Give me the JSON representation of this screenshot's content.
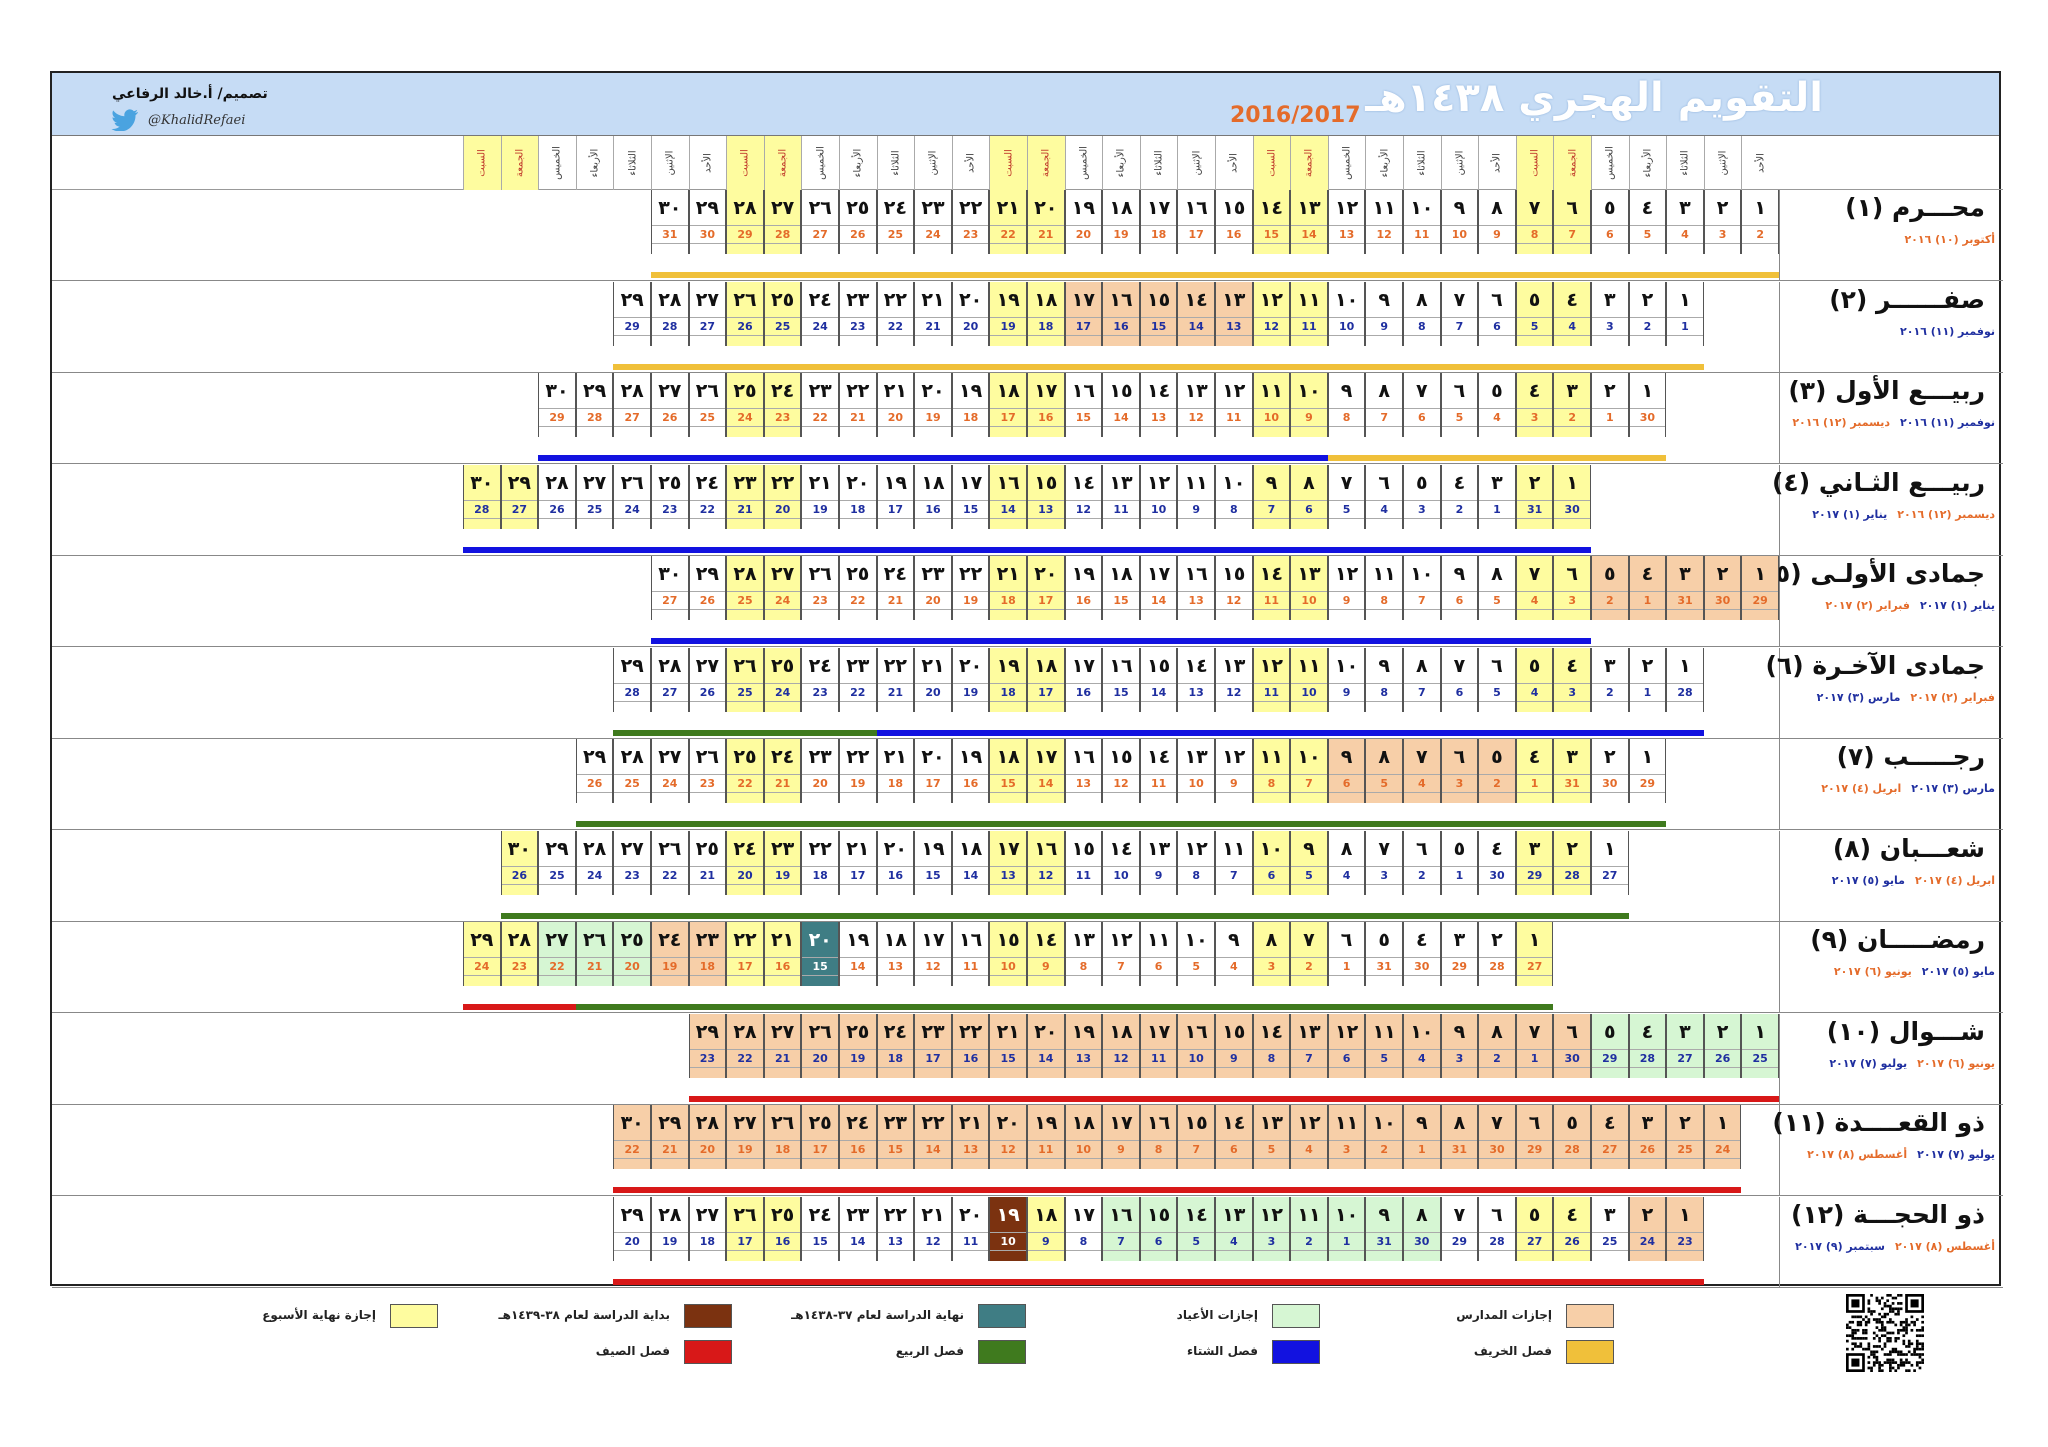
{
  "title": "التقويم الهجري ١٤٣٨هـ",
  "years": "2016/2017",
  "designer": "تصميم/ أ.خالد الرفاعي",
  "handle": "@KhalidRefaei",
  "colors": {
    "weekend": "#fefc9f",
    "school_holiday": "#f7cfa8",
    "eid_holiday": "#d6f6d3",
    "end_of_study": "#3f7d84",
    "start_of_study": "#7b3210",
    "autumn": "#f0c03a",
    "winter": "#1212e0",
    "spring": "#3f7a1e",
    "summer": "#d81818",
    "banner": "#c6dcf5",
    "title_orange": "#e46b2a"
  },
  "weekday_cycle": [
    "الأحد",
    "الإثنين",
    "الثلاثاء",
    "الأربعاء",
    "الخميس",
    "الجمعة",
    "السبت"
  ],
  "months": [
    {
      "name": "محـــرم (١)",
      "greg": [
        {
          "t": "أكتوبر (١٠) ٢٠١٦",
          "c": "a"
        }
      ],
      "offset": 0,
      "len": 30,
      "gstart": 2,
      "gmax": 31,
      "bars": [
        {
          "from": 1,
          "to": 30,
          "season": "autumn"
        }
      ]
    },
    {
      "name": "صفــــــر (٢)",
      "greg": [
        {
          "t": "نوفمبر (١١) ٢٠١٦",
          "c": "b"
        }
      ],
      "offset": 2,
      "len": 29,
      "gstart": 1,
      "gmax": 30,
      "holidays": {
        "sv": [
          13,
          14,
          15,
          16,
          17
        ]
      },
      "bars": [
        {
          "from": 1,
          "to": 29,
          "season": "autumn"
        }
      ]
    },
    {
      "name": "ربيـــع الأول (٣)",
      "greg": [
        {
          "t": "نوفمبر (١١) ٢٠١٦",
          "c": "b"
        },
        {
          "t": "ديسمبر (١٢) ٢٠١٦",
          "c": "a"
        }
      ],
      "offset": 3,
      "len": 30,
      "gstart": 30,
      "gmax": 30,
      "bars": [
        {
          "from": 1,
          "to": 9,
          "season": "autumn"
        },
        {
          "from": 10,
          "to": 30,
          "season": "winter"
        }
      ]
    },
    {
      "name": "ربيـــع الثـاني (٤)",
      "greg": [
        {
          "t": "ديسمبر (١٢) ٢٠١٦",
          "c": "a"
        },
        {
          "t": "يناير (١) ٢٠١٧",
          "c": "b"
        }
      ],
      "offset": 5,
      "len": 30,
      "gstart": 30,
      "gmax": 31,
      "bars": [
        {
          "from": 1,
          "to": 30,
          "season": "winter"
        },
        {
          "from": 31,
          "to": 35,
          "season": "winter"
        }
      ]
    },
    {
      "name": "جمادى الأولـى (٥)",
      "greg": [
        {
          "t": "يناير (١) ٢٠١٧",
          "c": "b"
        },
        {
          "t": "فبراير (٢) ٢٠١٧",
          "c": "a"
        }
      ],
      "offset": 0,
      "len": 30,
      "gstart": 29,
      "gmax": 31,
      "holidays": {
        "sv": [
          1,
          2,
          3,
          4,
          5
        ]
      },
      "bars": [
        {
          "from": 6,
          "to": 30,
          "season": "winter"
        }
      ]
    },
    {
      "name": "جمادى الآخـرة (٦)",
      "greg": [
        {
          "t": "فبراير (٢) ٢٠١٧",
          "c": "a"
        },
        {
          "t": "مارس (٣) ٢٠١٧",
          "c": "b"
        }
      ],
      "offset": 2,
      "len": 29,
      "gstart": 28,
      "gmax": 28,
      "bars": [
        {
          "from": 1,
          "to": 22,
          "season": "winter"
        },
        {
          "from": 23,
          "to": 29,
          "season": "spring"
        }
      ]
    },
    {
      "name": "رجـــــب (٧)",
      "greg": [
        {
          "t": "مارس (٣) ٢٠١٧",
          "c": "b"
        },
        {
          "t": "ابريل (٤) ٢٠١٧",
          "c": "a"
        }
      ],
      "offset": 3,
      "len": 29,
      "gstart": 29,
      "gmax": 31,
      "holidays": {
        "sv": [
          5,
          6,
          7,
          8,
          9
        ]
      },
      "bars": [
        {
          "from": 1,
          "to": 29,
          "season": "spring"
        }
      ]
    },
    {
      "name": "شعـــبان (٨)",
      "greg": [
        {
          "t": "ابريل (٤) ٢٠١٧",
          "c": "a"
        },
        {
          "t": "مايو (٥) ٢٠١٧",
          "c": "b"
        }
      ],
      "offset": 4,
      "len": 30,
      "gstart": 27,
      "gmax": 30,
      "bars": [
        {
          "from": 1,
          "to": 30,
          "season": "spring"
        }
      ]
    },
    {
      "name": "رمضـــــان (٩)",
      "greg": [
        {
          "t": "مايو (٥) ٢٠١٧",
          "c": "b"
        },
        {
          "t": "يونيو (٦) ٢٠١٧",
          "c": "a"
        }
      ],
      "offset": 6,
      "len": 29,
      "gstart": 27,
      "gmax": 31,
      "holidays": {
        "sv": [
          23,
          24
        ],
        "hv": [
          25,
          26,
          27
        ],
        "end": [
          20
        ]
      },
      "bars": [
        {
          "from": 1,
          "to": 26,
          "season": "spring"
        },
        {
          "from": 27,
          "to": 29,
          "season": "summer"
        }
      ]
    },
    {
      "name": "شـــوال (١٠)",
      "greg": [
        {
          "t": "يونيو (٦) ٢٠١٧",
          "c": "a"
        },
        {
          "t": "يوليو (٧) ٢٠١٧",
          "c": "b"
        }
      ],
      "offset": 0,
      "len": 29,
      "gstart": 25,
      "gmax": 30,
      "holidays": {
        "hv": [
          1,
          2,
          3,
          4,
          5
        ],
        "sv": [
          6,
          7,
          8,
          9,
          10,
          11,
          12,
          13,
          14,
          15,
          16,
          17,
          18,
          19,
          20,
          21,
          22,
          23,
          24,
          25,
          26,
          27,
          28,
          29
        ]
      },
      "bars": [
        {
          "from": 1,
          "to": 29,
          "season": "summer"
        }
      ]
    },
    {
      "name": "ذو القعــــدة (١١)",
      "greg": [
        {
          "t": "يوليو (٧) ٢٠١٧",
          "c": "b"
        },
        {
          "t": "أغسطس (٨) ٢٠١٧",
          "c": "a"
        }
      ],
      "offset": 1,
      "len": 30,
      "gstart": 24,
      "gmax": 31,
      "holidays": {
        "sv": [
          1,
          2,
          3,
          4,
          5,
          6,
          7,
          8,
          9,
          10,
          11,
          12,
          13,
          14,
          15,
          16,
          17,
          18,
          19,
          20,
          21,
          22,
          23,
          24,
          25,
          26,
          27,
          28,
          29,
          30
        ]
      },
      "bars": [
        {
          "from": 1,
          "to": 30,
          "season": "summer"
        }
      ]
    },
    {
      "name": "ذو الحجـــة (١٢)",
      "greg": [
        {
          "t": "أغسطس (٨) ٢٠١٧",
          "c": "a"
        },
        {
          "t": "سبتمبر (٩) ٢٠١٧",
          "c": "b"
        }
      ],
      "offset": 2,
      "len": 29,
      "gstart": 23,
      "gmax": 31,
      "holidays": {
        "sv": [
          1,
          2
        ],
        "hv": [
          8,
          9,
          10,
          11,
          12,
          13,
          14,
          15,
          16
        ],
        "start": [
          19
        ]
      },
      "bars": [
        {
          "from": 1,
          "to": 29,
          "season": "summer"
        }
      ]
    }
  ],
  "legend": [
    {
      "label": "إجازات المدارس",
      "color": "#f7cfa8"
    },
    {
      "label": "إجازات الأعياد",
      "color": "#d6f6d3"
    },
    {
      "label": "نهاية الدراسة لعام ٣٧-١٤٣٨هـ",
      "color": "#3f7d84"
    },
    {
      "label": "بداية الدراسة لعام ٣٨-١٤٣٩هـ",
      "color": "#7b3210"
    },
    {
      "label": "إجازة نهاية الأسبوع",
      "color": "#fefc9f"
    },
    {
      "label": "فصل الخريف",
      "color": "#f0c03a"
    },
    {
      "label": "فصل الشتاء",
      "color": "#1212e0"
    },
    {
      "label": "فصل الربيع",
      "color": "#3f7a1e"
    },
    {
      "label": "فصل الصيف",
      "color": "#d81818"
    }
  ]
}
